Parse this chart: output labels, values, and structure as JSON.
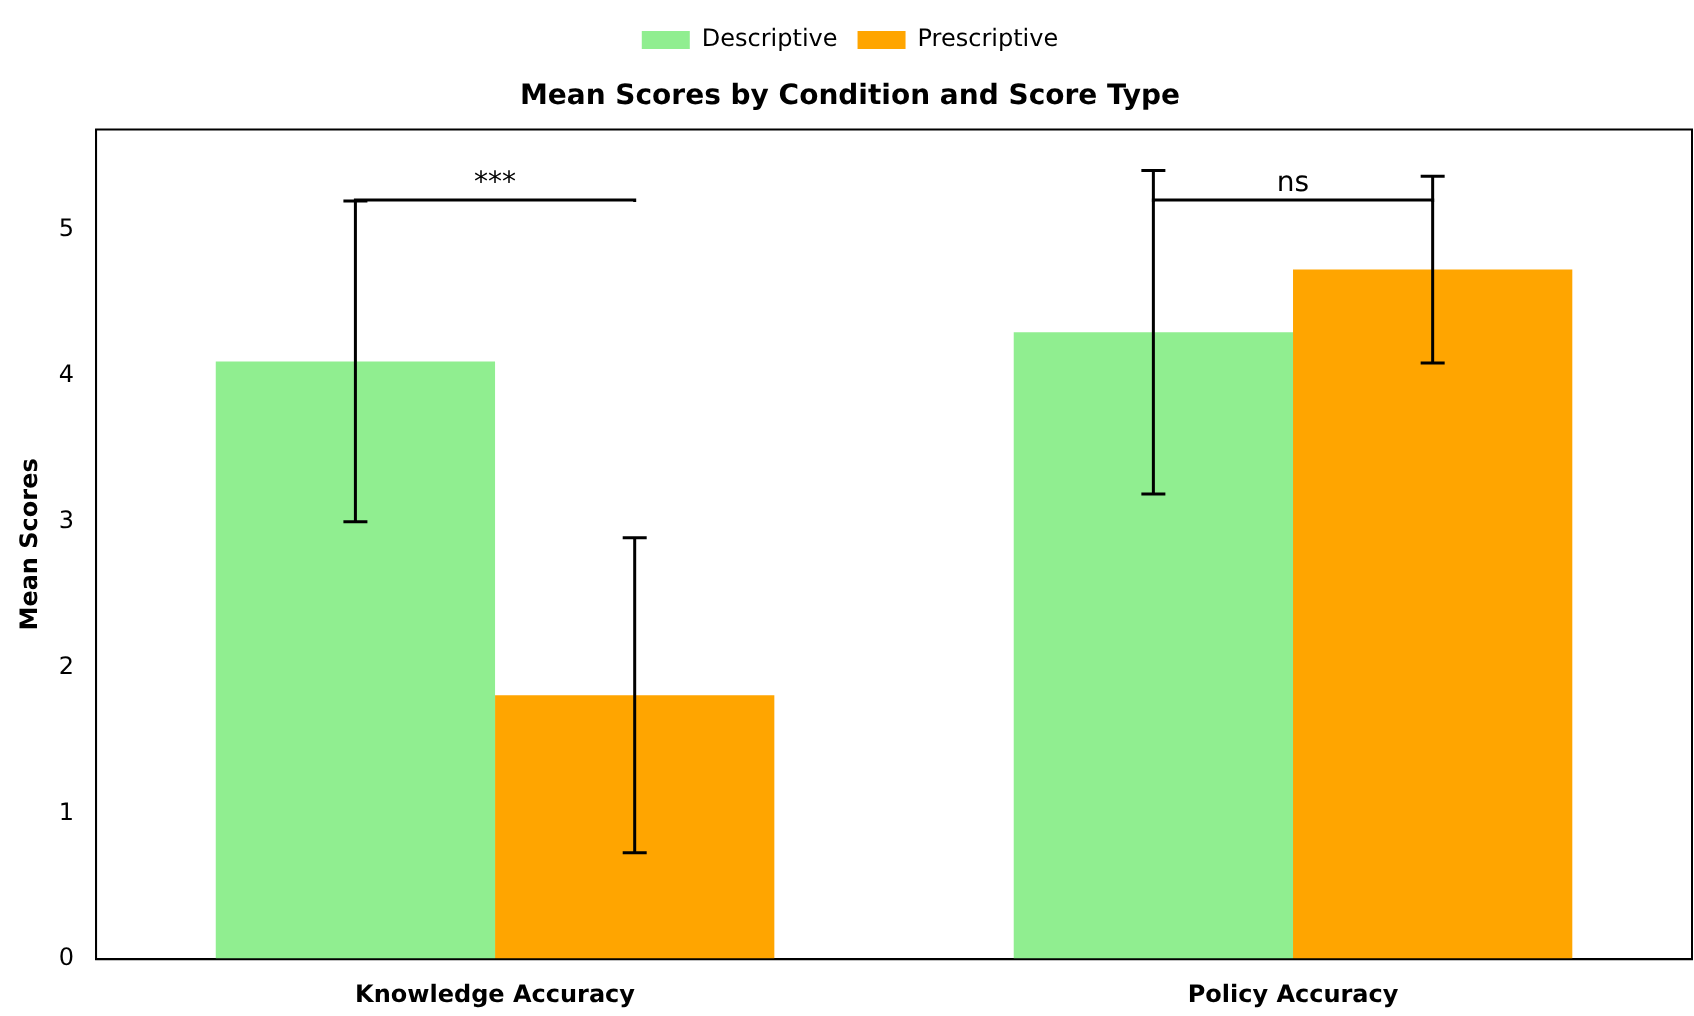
{
  "chart_data": {
    "type": "bar",
    "title": "Mean Scores by Condition and Score Type",
    "ylabel": "Mean Scores",
    "categories": [
      "Knowledge Accuracy",
      "Policy Accuracy"
    ],
    "series": [
      {
        "name": "Descriptive",
        "color": "#90ee90",
        "values": [
          4.1,
          4.3
        ],
        "errors": [
          1.1,
          1.11
        ]
      },
      {
        "name": "Prescriptive",
        "color": "#ffa500",
        "values": [
          1.81,
          4.73
        ],
        "errors": [
          1.08,
          0.64
        ]
      }
    ],
    "ylim": [
      0,
      5.69
    ],
    "yticks": [
      0,
      1,
      2,
      3,
      4,
      5
    ],
    "grid": false,
    "legend": "top",
    "annotations": [
      "***",
      "ns"
    ]
  }
}
